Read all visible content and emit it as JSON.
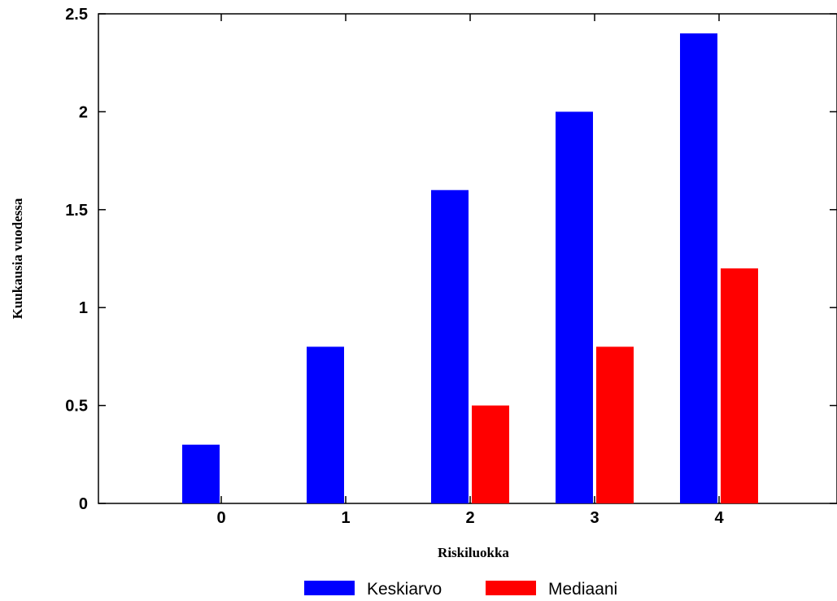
{
  "chart_data": {
    "type": "bar",
    "title": "",
    "xlabel": "Riskiluokka",
    "ylabel": "Kuukausia vuodessa",
    "categories": [
      "0",
      "1",
      "2",
      "3",
      "4"
    ],
    "series": [
      {
        "name": "Keskiarvo",
        "color": "#0000ff",
        "values": [
          0.3,
          0.8,
          1.6,
          2.0,
          2.4
        ]
      },
      {
        "name": "Mediaani",
        "color": "#ff0000",
        "values": [
          0,
          0,
          0.5,
          0.8,
          1.2
        ]
      }
    ],
    "ylim": [
      0,
      2.5
    ],
    "yticks": [
      "0",
      "0.5",
      "1",
      "1.5",
      "2",
      "2.5"
    ],
    "grid": false,
    "legend_position": "bottom"
  }
}
